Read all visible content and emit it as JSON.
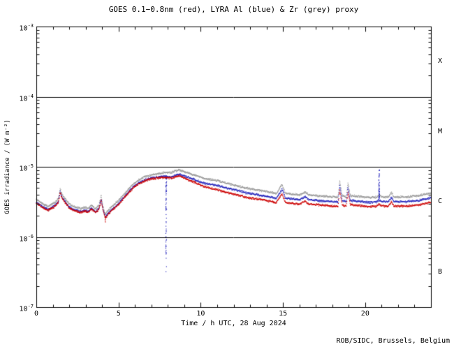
{
  "chart_data": {
    "type": "scatter",
    "title": "GOES 0.1−0.8nm (red), LYRA Al (blue) & Zr (grey) proxy",
    "xlabel": "Time / h UTC, 28 Aug 2024",
    "ylabel": "GOES irradiance / (W m⁻²)",
    "source_credit": "ROB/SIDC, Brussels, Belgium",
    "xlim": [
      0,
      24
    ],
    "ylog_lim": [
      -7,
      -3
    ],
    "x_ticks": [
      0,
      5,
      10,
      15,
      20
    ],
    "x_minor_tick_step_h": 1,
    "y_tick_exponents": [
      -3,
      -4,
      -5,
      -6,
      -7
    ],
    "class_lines_log": [
      -4,
      -5,
      -6
    ],
    "class_labels": [
      {
        "label": "X",
        "log_y": -3.5
      },
      {
        "label": "M",
        "log_y": -4.5
      },
      {
        "label": "C",
        "log_y": -5.5
      },
      {
        "label": "B",
        "log_y": -6.5
      }
    ],
    "cadence_h": 0.016667,
    "series": [
      {
        "id": "zr_grey",
        "name": "LYRA Zr proxy",
        "color": "#999999",
        "noise": 0.018,
        "seed": 7,
        "from_series": "goes_red",
        "offset_points": [
          [
            0,
            0.055
          ],
          [
            7,
            0.055
          ],
          [
            11,
            0.13
          ],
          [
            24,
            0.13
          ]
        ]
      },
      {
        "id": "lyra_al_blue",
        "name": "LYRA Al proxy",
        "color": "#2424bb",
        "noise": 0.018,
        "seed": 13,
        "from_series": "goes_red",
        "offset_points": [
          [
            0,
            0.012
          ],
          [
            8,
            0.012
          ],
          [
            11,
            0.062
          ],
          [
            24,
            0.062
          ]
        ],
        "events": [
          {
            "type": "drop",
            "t": 7.9,
            "to_log": -6.52,
            "n": 70
          },
          {
            "type": "spike",
            "t": 20.85,
            "to_log": -5.03,
            "n": 45
          }
        ]
      },
      {
        "id": "goes_red",
        "name": "GOES 0.1-0.8nm",
        "color": "#cc0000",
        "noise": 0.018,
        "seed": 3,
        "events": [
          {
            "type": "drop",
            "t": 4.18,
            "to_log": -5.84,
            "n": 6
          }
        ],
        "points": [
          [
            0.0,
            -5.52
          ],
          [
            0.2,
            -5.55
          ],
          [
            0.45,
            -5.59
          ],
          [
            0.7,
            -5.62
          ],
          [
            0.95,
            -5.59
          ],
          [
            1.15,
            -5.56
          ],
          [
            1.35,
            -5.5
          ],
          [
            1.45,
            -5.37
          ],
          [
            1.55,
            -5.44
          ],
          [
            1.75,
            -5.51
          ],
          [
            1.95,
            -5.57
          ],
          [
            2.15,
            -5.61
          ],
          [
            2.4,
            -5.63
          ],
          [
            2.7,
            -5.65
          ],
          [
            2.95,
            -5.63
          ],
          [
            3.15,
            -5.65
          ],
          [
            3.35,
            -5.6
          ],
          [
            3.6,
            -5.65
          ],
          [
            3.8,
            -5.61
          ],
          [
            3.95,
            -5.47
          ],
          [
            4.05,
            -5.62
          ],
          [
            4.2,
            -5.73
          ],
          [
            4.35,
            -5.68
          ],
          [
            4.55,
            -5.63
          ],
          [
            4.8,
            -5.58
          ],
          [
            5.05,
            -5.52
          ],
          [
            5.35,
            -5.44
          ],
          [
            5.65,
            -5.36
          ],
          [
            5.95,
            -5.29
          ],
          [
            6.25,
            -5.24
          ],
          [
            6.6,
            -5.2
          ],
          [
            7.0,
            -5.17
          ],
          [
            7.4,
            -5.16
          ],
          [
            7.8,
            -5.15
          ],
          [
            8.2,
            -5.16
          ],
          [
            8.45,
            -5.14
          ],
          [
            8.7,
            -5.13
          ],
          [
            9.0,
            -5.16
          ],
          [
            9.4,
            -5.2
          ],
          [
            9.8,
            -5.24
          ],
          [
            10.2,
            -5.28
          ],
          [
            10.7,
            -5.31
          ],
          [
            11.2,
            -5.34
          ],
          [
            11.7,
            -5.37
          ],
          [
            12.2,
            -5.4
          ],
          [
            12.7,
            -5.43
          ],
          [
            13.2,
            -5.45
          ],
          [
            13.7,
            -5.47
          ],
          [
            14.2,
            -5.49
          ],
          [
            14.6,
            -5.51
          ],
          [
            14.95,
            -5.38
          ],
          [
            15.15,
            -5.51
          ],
          [
            15.5,
            -5.52
          ],
          [
            16.0,
            -5.53
          ],
          [
            16.35,
            -5.49
          ],
          [
            16.55,
            -5.53
          ],
          [
            17.0,
            -5.54
          ],
          [
            17.5,
            -5.55
          ],
          [
            18.0,
            -5.56
          ],
          [
            18.35,
            -5.56
          ],
          [
            18.45,
            -5.33
          ],
          [
            18.6,
            -5.54
          ],
          [
            18.85,
            -5.56
          ],
          [
            18.95,
            -5.36
          ],
          [
            19.1,
            -5.54
          ],
          [
            19.5,
            -5.55
          ],
          [
            19.9,
            -5.56
          ],
          [
            20.3,
            -5.57
          ],
          [
            20.7,
            -5.56
          ],
          [
            20.85,
            -5.53
          ],
          [
            21.0,
            -5.56
          ],
          [
            21.4,
            -5.56
          ],
          [
            21.6,
            -5.5
          ],
          [
            21.75,
            -5.56
          ],
          [
            22.1,
            -5.56
          ],
          [
            22.5,
            -5.56
          ],
          [
            22.9,
            -5.55
          ],
          [
            23.3,
            -5.54
          ],
          [
            23.7,
            -5.52
          ],
          [
            24.0,
            -5.5
          ]
        ]
      }
    ]
  }
}
